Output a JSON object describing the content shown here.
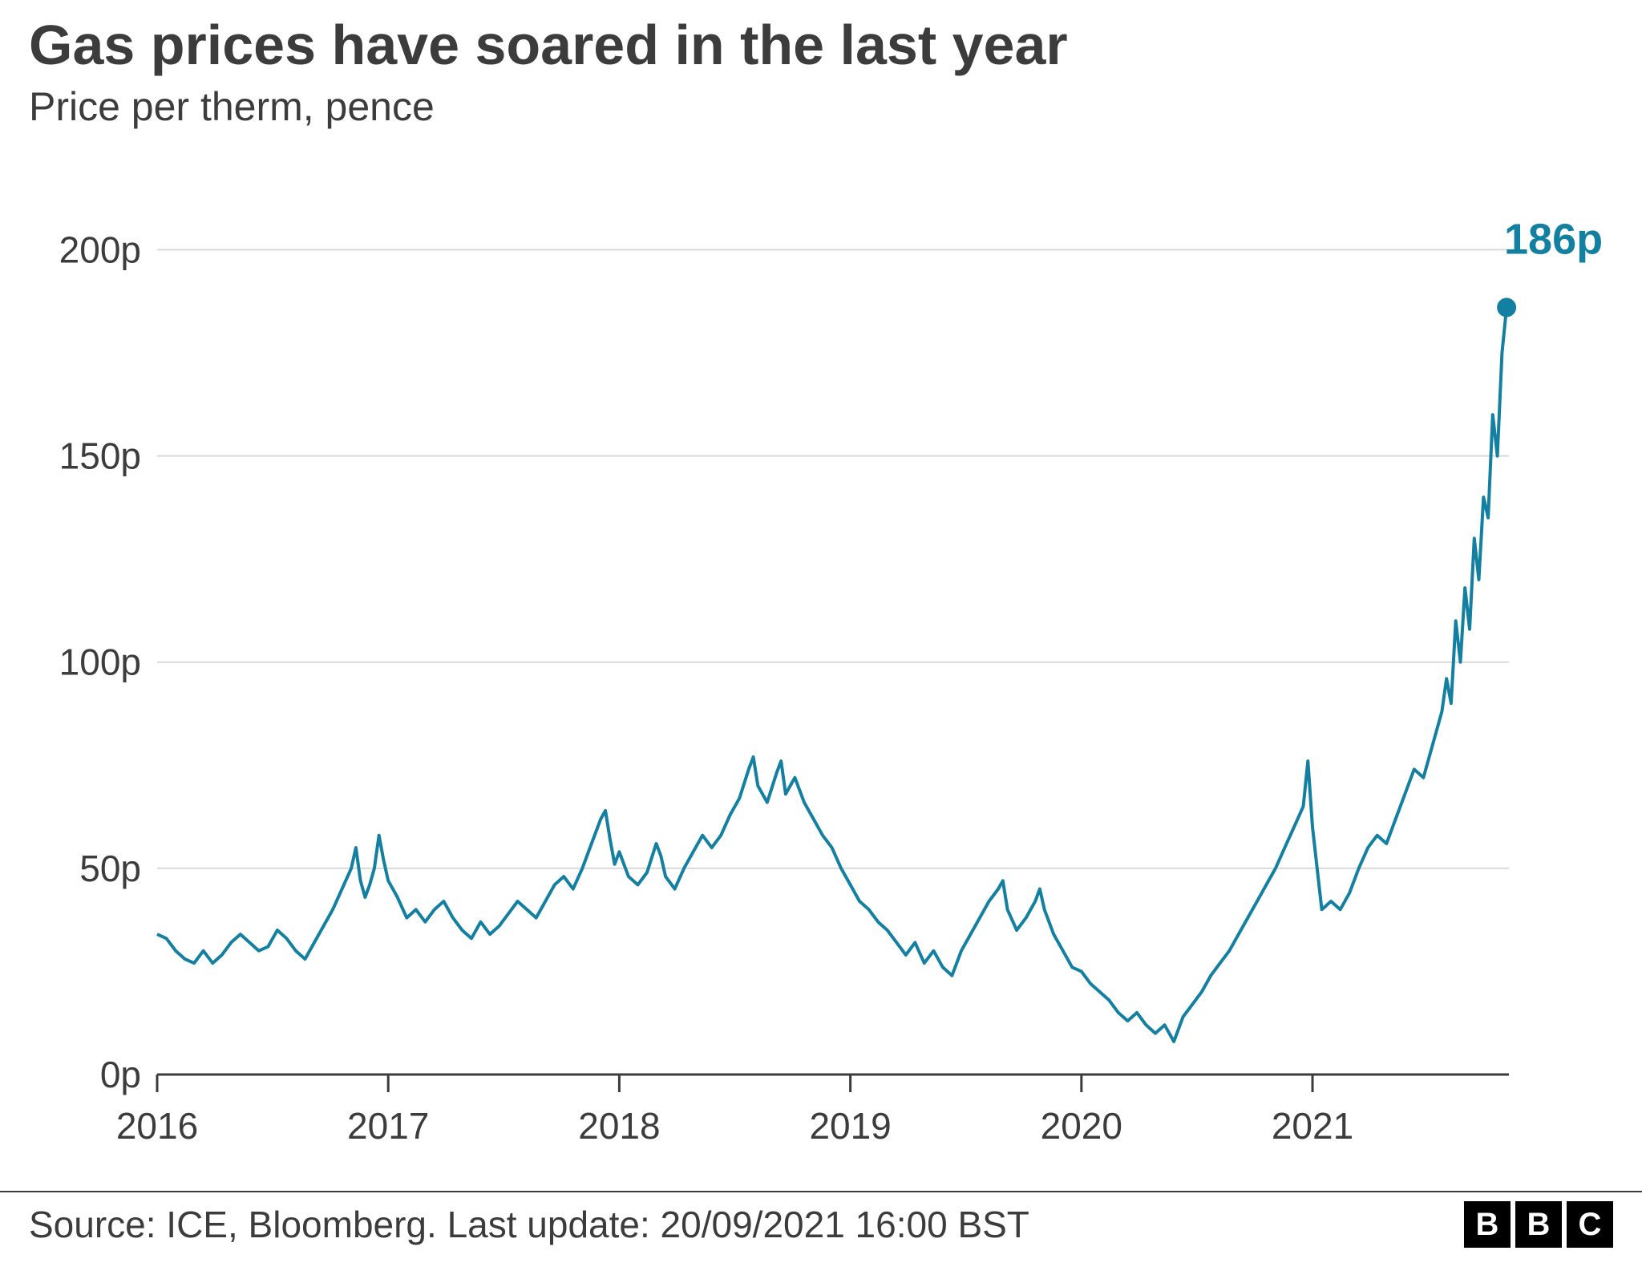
{
  "title": "Gas prices have soared in the last year",
  "subtitle": "Price per therm, pence",
  "source_text": "Source: ICE, Bloomberg. Last update: 20/09/2021 16:00 BST",
  "logo_letters": [
    "B",
    "B",
    "C"
  ],
  "colors": {
    "text": "#3c3c3c",
    "line": "#1380a1",
    "gridline": "#d9d9d9",
    "zero_line": "#3c3c3c",
    "axis_line": "#3c3c3c",
    "background": "#ffffff",
    "endpoint_label": "#1380a1"
  },
  "chart": {
    "type": "line",
    "ylabel_suffix": "p",
    "ylim": [
      0,
      210
    ],
    "ytick_step": 50,
    "yticks": [
      0,
      50,
      100,
      150,
      200
    ],
    "x_start_year": 2016.0,
    "x_end_year": 2021.85,
    "xticks": [
      2016,
      2017,
      2018,
      2019,
      2020,
      2021
    ],
    "line_width": 4,
    "endpoint_marker_radius": 12,
    "end_label": "186p",
    "font_size_title": 70,
    "font_size_subtitle": 50,
    "font_size_tick": 46,
    "font_size_endlabel": 54,
    "data": [
      [
        2016.0,
        34
      ],
      [
        2016.04,
        33
      ],
      [
        2016.08,
        30
      ],
      [
        2016.12,
        28
      ],
      [
        2016.16,
        27
      ],
      [
        2016.2,
        30
      ],
      [
        2016.24,
        27
      ],
      [
        2016.28,
        29
      ],
      [
        2016.32,
        32
      ],
      [
        2016.36,
        34
      ],
      [
        2016.4,
        32
      ],
      [
        2016.44,
        30
      ],
      [
        2016.48,
        31
      ],
      [
        2016.52,
        35
      ],
      [
        2016.56,
        33
      ],
      [
        2016.6,
        30
      ],
      [
        2016.64,
        28
      ],
      [
        2016.68,
        32
      ],
      [
        2016.72,
        36
      ],
      [
        2016.76,
        40
      ],
      [
        2016.8,
        45
      ],
      [
        2016.84,
        50
      ],
      [
        2016.86,
        55
      ],
      [
        2016.88,
        47
      ],
      [
        2016.9,
        43
      ],
      [
        2016.92,
        46
      ],
      [
        2016.94,
        50
      ],
      [
        2016.96,
        58
      ],
      [
        2016.98,
        52
      ],
      [
        2017.0,
        47
      ],
      [
        2017.04,
        43
      ],
      [
        2017.08,
        38
      ],
      [
        2017.12,
        40
      ],
      [
        2017.16,
        37
      ],
      [
        2017.2,
        40
      ],
      [
        2017.24,
        42
      ],
      [
        2017.28,
        38
      ],
      [
        2017.32,
        35
      ],
      [
        2017.36,
        33
      ],
      [
        2017.4,
        37
      ],
      [
        2017.44,
        34
      ],
      [
        2017.48,
        36
      ],
      [
        2017.52,
        39
      ],
      [
        2017.56,
        42
      ],
      [
        2017.6,
        40
      ],
      [
        2017.64,
        38
      ],
      [
        2017.68,
        42
      ],
      [
        2017.72,
        46
      ],
      [
        2017.76,
        48
      ],
      [
        2017.8,
        45
      ],
      [
        2017.84,
        50
      ],
      [
        2017.88,
        56
      ],
      [
        2017.92,
        62
      ],
      [
        2017.94,
        64
      ],
      [
        2017.96,
        57
      ],
      [
        2017.98,
        51
      ],
      [
        2018.0,
        54
      ],
      [
        2018.04,
        48
      ],
      [
        2018.08,
        46
      ],
      [
        2018.12,
        49
      ],
      [
        2018.16,
        56
      ],
      [
        2018.18,
        53
      ],
      [
        2018.2,
        48
      ],
      [
        2018.24,
        45
      ],
      [
        2018.28,
        50
      ],
      [
        2018.32,
        54
      ],
      [
        2018.36,
        58
      ],
      [
        2018.4,
        55
      ],
      [
        2018.44,
        58
      ],
      [
        2018.48,
        63
      ],
      [
        2018.52,
        67
      ],
      [
        2018.56,
        74
      ],
      [
        2018.58,
        77
      ],
      [
        2018.6,
        70
      ],
      [
        2018.64,
        66
      ],
      [
        2018.68,
        73
      ],
      [
        2018.7,
        76
      ],
      [
        2018.72,
        68
      ],
      [
        2018.76,
        72
      ],
      [
        2018.8,
        66
      ],
      [
        2018.84,
        62
      ],
      [
        2018.88,
        58
      ],
      [
        2018.92,
        55
      ],
      [
        2018.96,
        50
      ],
      [
        2019.0,
        46
      ],
      [
        2019.04,
        42
      ],
      [
        2019.08,
        40
      ],
      [
        2019.12,
        37
      ],
      [
        2019.16,
        35
      ],
      [
        2019.2,
        32
      ],
      [
        2019.24,
        29
      ],
      [
        2019.28,
        32
      ],
      [
        2019.32,
        27
      ],
      [
        2019.36,
        30
      ],
      [
        2019.4,
        26
      ],
      [
        2019.44,
        24
      ],
      [
        2019.48,
        30
      ],
      [
        2019.52,
        34
      ],
      [
        2019.56,
        38
      ],
      [
        2019.6,
        42
      ],
      [
        2019.64,
        45
      ],
      [
        2019.66,
        47
      ],
      [
        2019.68,
        40
      ],
      [
        2019.72,
        35
      ],
      [
        2019.76,
        38
      ],
      [
        2019.8,
        42
      ],
      [
        2019.82,
        45
      ],
      [
        2019.84,
        40
      ],
      [
        2019.88,
        34
      ],
      [
        2019.92,
        30
      ],
      [
        2019.96,
        26
      ],
      [
        2020.0,
        25
      ],
      [
        2020.04,
        22
      ],
      [
        2020.08,
        20
      ],
      [
        2020.12,
        18
      ],
      [
        2020.16,
        15
      ],
      [
        2020.2,
        13
      ],
      [
        2020.24,
        15
      ],
      [
        2020.28,
        12
      ],
      [
        2020.32,
        10
      ],
      [
        2020.36,
        12
      ],
      [
        2020.4,
        8
      ],
      [
        2020.44,
        14
      ],
      [
        2020.48,
        17
      ],
      [
        2020.52,
        20
      ],
      [
        2020.56,
        24
      ],
      [
        2020.6,
        27
      ],
      [
        2020.64,
        30
      ],
      [
        2020.68,
        34
      ],
      [
        2020.72,
        38
      ],
      [
        2020.76,
        42
      ],
      [
        2020.8,
        46
      ],
      [
        2020.84,
        50
      ],
      [
        2020.88,
        55
      ],
      [
        2020.92,
        60
      ],
      [
        2020.96,
        65
      ],
      [
        2020.98,
        76
      ],
      [
        2021.0,
        60
      ],
      [
        2021.02,
        50
      ],
      [
        2021.04,
        40
      ],
      [
        2021.08,
        42
      ],
      [
        2021.12,
        40
      ],
      [
        2021.16,
        44
      ],
      [
        2021.2,
        50
      ],
      [
        2021.24,
        55
      ],
      [
        2021.28,
        58
      ],
      [
        2021.32,
        56
      ],
      [
        2021.36,
        62
      ],
      [
        2021.4,
        68
      ],
      [
        2021.44,
        74
      ],
      [
        2021.48,
        72
      ],
      [
        2021.52,
        80
      ],
      [
        2021.56,
        88
      ],
      [
        2021.58,
        96
      ],
      [
        2021.6,
        90
      ],
      [
        2021.62,
        110
      ],
      [
        2021.64,
        100
      ],
      [
        2021.66,
        118
      ],
      [
        2021.68,
        108
      ],
      [
        2021.7,
        130
      ],
      [
        2021.72,
        120
      ],
      [
        2021.74,
        140
      ],
      [
        2021.76,
        135
      ],
      [
        2021.78,
        160
      ],
      [
        2021.8,
        150
      ],
      [
        2021.82,
        175
      ],
      [
        2021.84,
        186
      ]
    ]
  }
}
